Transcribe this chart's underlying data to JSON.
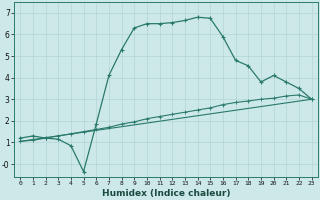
{
  "xlabel": "Humidex (Indice chaleur)",
  "background_color": "#cce8e8",
  "line_color": "#2a7a6a",
  "grid_color": "#b8d8d8",
  "xlim": [
    -0.5,
    23.5
  ],
  "ylim": [
    -0.6,
    7.5
  ],
  "xticks": [
    0,
    1,
    2,
    3,
    4,
    5,
    6,
    7,
    8,
    9,
    10,
    11,
    12,
    13,
    14,
    15,
    16,
    17,
    18,
    19,
    20,
    21,
    22,
    23
  ],
  "yticks": [
    0,
    1,
    2,
    3,
    4,
    5,
    6,
    7
  ],
  "ytick_labels": [
    "-0",
    "1",
    "2",
    "3",
    "4",
    "5",
    "6",
    "7"
  ],
  "curve1_x": [
    0,
    1,
    2,
    3,
    4,
    5,
    6,
    7,
    8,
    9,
    10,
    11,
    12,
    13,
    14,
    15,
    16,
    17,
    18,
    19,
    20,
    21,
    22,
    23
  ],
  "curve1_y": [
    1.2,
    1.3,
    1.2,
    1.15,
    0.85,
    -0.35,
    1.85,
    4.1,
    5.3,
    6.3,
    6.5,
    6.5,
    6.55,
    6.65,
    6.8,
    6.75,
    5.9,
    4.8,
    4.55,
    3.8,
    4.1,
    3.8,
    3.5,
    3.0
  ],
  "curve2_x": [
    0,
    1,
    2,
    3,
    4,
    5,
    6,
    7,
    8,
    9,
    10,
    11,
    12,
    13,
    14,
    15,
    16,
    17,
    18,
    19,
    20,
    21,
    22,
    23
  ],
  "curve2_y": [
    1.05,
    1.1,
    1.2,
    1.3,
    1.4,
    1.5,
    1.6,
    1.7,
    1.85,
    1.95,
    2.1,
    2.2,
    2.3,
    2.4,
    2.5,
    2.6,
    2.75,
    2.85,
    2.92,
    3.0,
    3.05,
    3.15,
    3.2,
    3.0
  ],
  "curve3_x": [
    0,
    23
  ],
  "curve3_y": [
    1.05,
    3.0
  ]
}
